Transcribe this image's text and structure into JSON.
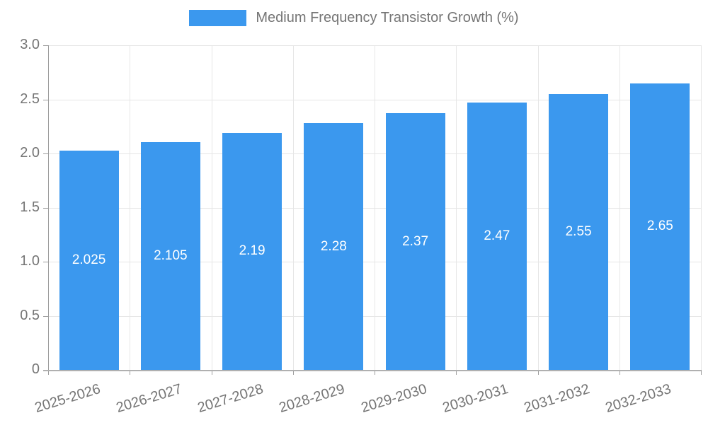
{
  "legend": {
    "label": "Medium Frequency Transistor Growth (%)"
  },
  "colors": {
    "bar": "#3b98ee",
    "grid": "#e6e6e6",
    "axis": "#9e9e9e",
    "baseline": "#b0b0b0",
    "tick_text": "#757575",
    "bar_label_text": "#ffffff",
    "background": "#ffffff"
  },
  "chart_data": {
    "type": "bar",
    "title": "Medium Frequency Transistor Growth (%)",
    "categories": [
      "2025-2026",
      "2026-2027",
      "2027-2028",
      "2028-2029",
      "2029-2030",
      "2030-2031",
      "2031-2032",
      "2032-2033"
    ],
    "values": [
      2.025,
      2.105,
      2.19,
      2.28,
      2.37,
      2.47,
      2.55,
      2.65
    ],
    "bar_labels": [
      "2.025",
      "2.105",
      "2.19",
      "2.28",
      "2.37",
      "2.47",
      "2.55",
      "2.65"
    ],
    "series": [
      {
        "name": "Medium Frequency Transistor Growth (%)",
        "values": [
          2.025,
          2.105,
          2.19,
          2.28,
          2.37,
          2.47,
          2.55,
          2.65
        ]
      }
    ],
    "xlabel": "",
    "ylabel": "",
    "ylim": [
      0,
      3
    ],
    "y_ticks": [
      {
        "v": 0,
        "label": "0"
      },
      {
        "v": 0.5,
        "label": "0.5"
      },
      {
        "v": 1.0,
        "label": "1.0"
      },
      {
        "v": 1.5,
        "label": "1.5"
      },
      {
        "v": 2.0,
        "label": "2.0"
      },
      {
        "v": 2.5,
        "label": "2.5"
      },
      {
        "v": 3.0,
        "label": "3.0"
      }
    ],
    "grid": "on",
    "legend_position": "top"
  }
}
